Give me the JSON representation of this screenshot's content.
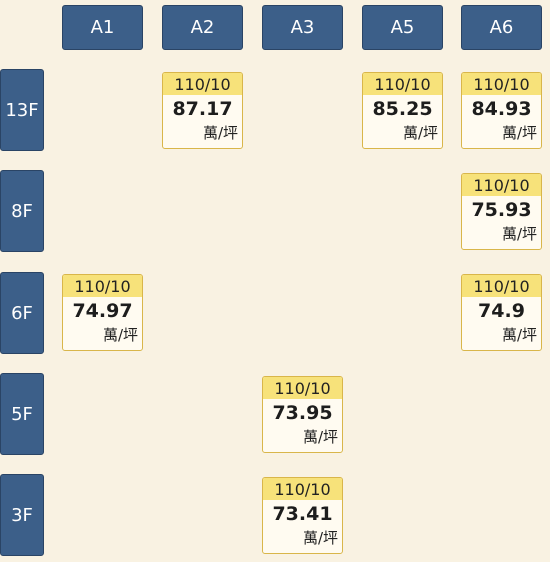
{
  "columns": [
    "A1",
    "A2",
    "A3",
    "A5",
    "A6"
  ],
  "rows": [
    "13F",
    "8F",
    "6F",
    "5F",
    "3F"
  ],
  "unit": "萬/坪",
  "cells": [
    {
      "floor": "13F",
      "unit_col": "A2",
      "date": "110/10",
      "price": "87.17"
    },
    {
      "floor": "13F",
      "unit_col": "A5",
      "date": "110/10",
      "price": "85.25"
    },
    {
      "floor": "13F",
      "unit_col": "A6",
      "date": "110/10",
      "price": "84.93"
    },
    {
      "floor": "8F",
      "unit_col": "A6",
      "date": "110/10",
      "price": "75.93"
    },
    {
      "floor": "6F",
      "unit_col": "A1",
      "date": "110/10",
      "price": "74.97"
    },
    {
      "floor": "6F",
      "unit_col": "A6",
      "date": "110/10",
      "price": "74.9"
    },
    {
      "floor": "5F",
      "unit_col": "A3",
      "date": "110/10",
      "price": "73.95"
    },
    {
      "floor": "3F",
      "unit_col": "A3",
      "date": "110/10",
      "price": "73.41"
    }
  ],
  "colors": {
    "background": "#f9f2e2",
    "header": "#3c5f89",
    "date_band": "#f7e27a",
    "cell_border": "#d9b64a"
  }
}
